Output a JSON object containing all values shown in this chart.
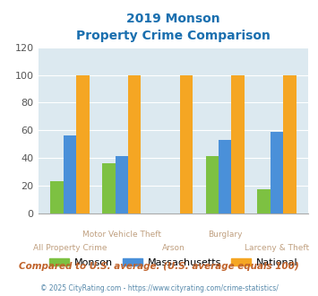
{
  "title_line1": "2019 Monson",
  "title_line2": "Property Crime Comparison",
  "title_color": "#1a6faf",
  "monson": [
    23,
    36,
    0,
    41,
    17
  ],
  "massachusetts": [
    56,
    41,
    0,
    53,
    59
  ],
  "national": [
    100,
    100,
    100,
    100,
    100
  ],
  "bar_colors": {
    "monson": "#7dc142",
    "massachusetts": "#4a90d9",
    "national": "#f5a623"
  },
  "ylim": [
    0,
    120
  ],
  "yticks": [
    0,
    20,
    40,
    60,
    80,
    100,
    120
  ],
  "plot_bg": "#dce9f0",
  "x_label_top": [
    "",
    "Motor Vehicle Theft",
    "",
    "Burglary",
    ""
  ],
  "x_label_bottom": [
    "All Property Crime",
    "",
    "Arson",
    "",
    "Larceny & Theft"
  ],
  "legend_labels": [
    "Monson",
    "Massachusetts",
    "National"
  ],
  "footer_text": "Compared to U.S. average. (U.S. average equals 100)",
  "copyright_text": "© 2025 CityRating.com - https://www.cityrating.com/crime-statistics/",
  "footer_color": "#c0622a",
  "copyright_color": "#5588aa"
}
